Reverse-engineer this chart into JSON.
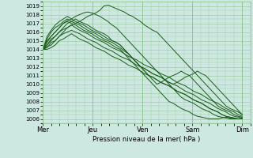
{
  "title": "",
  "xlabel": "Pression niveau de la mer( hPa )",
  "ylabel": "",
  "bg_color": "#cce8e0",
  "grid_color": "#88c088",
  "line_color": "#1a5c1a",
  "ylim": [
    1005.5,
    1019.5
  ],
  "xlim": [
    0,
    100
  ],
  "yticks": [
    1006,
    1007,
    1008,
    1009,
    1010,
    1011,
    1012,
    1013,
    1014,
    1015,
    1016,
    1017,
    1018,
    1019
  ],
  "xtick_positions": [
    0,
    24,
    48,
    72,
    96
  ],
  "xtick_labels": [
    "Mer",
    "Jeu",
    "Ven",
    "Sam",
    "Dim"
  ],
  "lines": [
    [
      1014.0,
      1014.5,
      1015.2,
      1015.5,
      1016.0,
      1016.3,
      1016.5,
      1016.8,
      1017.0,
      1017.2,
      1017.5,
      1017.8,
      1018.0,
      1018.2,
      1018.5,
      1019.0,
      1019.1,
      1018.9,
      1018.7,
      1018.5,
      1018.3,
      1018.0,
      1017.8,
      1017.5,
      1017.2,
      1016.8,
      1016.5,
      1016.2,
      1016.0,
      1015.5,
      1015.0,
      1014.5,
      1014.0,
      1013.5,
      1013.0,
      1012.5,
      1012.0,
      1011.5,
      1011.0,
      1010.5,
      1010.0,
      1009.5,
      1009.0,
      1008.5,
      1008.0,
      1007.5,
      1007.2,
      1007.0,
      1006.8,
      1006.5
    ],
    [
      1014.0,
      1014.8,
      1015.5,
      1016.0,
      1016.5,
      1017.0,
      1017.3,
      1017.5,
      1017.8,
      1018.0,
      1018.2,
      1018.3,
      1018.2,
      1018.0,
      1017.8,
      1017.5,
      1017.2,
      1016.8,
      1016.5,
      1016.0,
      1015.5,
      1015.0,
      1014.5,
      1014.0,
      1013.5,
      1013.0,
      1012.5,
      1012.0,
      1011.5,
      1011.0,
      1010.5,
      1010.0,
      1009.5,
      1009.0,
      1008.5,
      1008.2,
      1008.0,
      1007.8,
      1007.5,
      1007.2,
      1007.0,
      1006.8,
      1006.5,
      1006.3,
      1006.2,
      1006.1,
      1006.0,
      1006.0,
      1006.0,
      1006.1
    ],
    [
      1014.0,
      1014.5,
      1015.0,
      1015.5,
      1016.0,
      1016.5,
      1017.0,
      1017.2,
      1017.5,
      1017.2,
      1017.0,
      1016.8,
      1016.5,
      1016.2,
      1016.0,
      1015.8,
      1015.5,
      1015.0,
      1014.8,
      1014.5,
      1014.0,
      1013.5,
      1013.0,
      1012.5,
      1012.0,
      1011.5,
      1011.0,
      1010.8,
      1010.5,
      1010.2,
      1010.0,
      1009.8,
      1009.5,
      1009.2,
      1009.0,
      1008.8,
      1008.5,
      1008.2,
      1008.0,
      1007.8,
      1007.5,
      1007.2,
      1007.0,
      1006.8,
      1006.5,
      1006.3,
      1006.2,
      1006.1,
      1006.0,
      1006.0
    ],
    [
      1014.0,
      1014.3,
      1014.5,
      1015.0,
      1015.5,
      1016.0,
      1016.5,
      1016.8,
      1016.5,
      1016.2,
      1016.0,
      1015.8,
      1015.5,
      1015.2,
      1015.0,
      1014.8,
      1014.5,
      1014.2,
      1014.0,
      1013.8,
      1013.5,
      1013.2,
      1013.0,
      1012.8,
      1012.5,
      1012.2,
      1012.0,
      1011.8,
      1011.5,
      1011.2,
      1011.0,
      1010.8,
      1010.5,
      1010.2,
      1010.0,
      1009.8,
      1009.5,
      1009.2,
      1009.0,
      1008.8,
      1008.5,
      1008.2,
      1008.0,
      1007.8,
      1007.5,
      1007.2,
      1007.0,
      1006.8,
      1006.5,
      1006.3
    ],
    [
      1014.0,
      1014.0,
      1014.2,
      1014.5,
      1015.0,
      1015.2,
      1015.5,
      1015.8,
      1015.5,
      1015.2,
      1015.0,
      1014.8,
      1014.5,
      1014.2,
      1014.0,
      1013.8,
      1013.5,
      1013.2,
      1013.0,
      1012.8,
      1012.5,
      1012.2,
      1012.0,
      1011.8,
      1011.5,
      1011.2,
      1011.0,
      1010.8,
      1010.5,
      1010.2,
      1010.0,
      1009.8,
      1009.5,
      1009.2,
      1009.0,
      1008.8,
      1008.5,
      1008.2,
      1008.0,
      1007.8,
      1007.5,
      1007.2,
      1007.0,
      1006.8,
      1006.5,
      1006.3,
      1006.2,
      1006.1,
      1006.0,
      1006.0
    ],
    [
      1014.0,
      1014.2,
      1014.8,
      1015.0,
      1015.5,
      1015.8,
      1016.0,
      1016.2,
      1016.0,
      1015.8,
      1015.5,
      1015.2,
      1015.0,
      1014.8,
      1014.5,
      1014.2,
      1014.0,
      1013.8,
      1013.5,
      1013.2,
      1013.0,
      1012.8,
      1012.5,
      1012.2,
      1012.0,
      1011.8,
      1011.5,
      1011.2,
      1011.0,
      1010.8,
      1010.5,
      1010.2,
      1010.0,
      1009.8,
      1009.5,
      1009.2,
      1009.0,
      1008.8,
      1008.5,
      1008.2,
      1008.0,
      1007.8,
      1007.5,
      1007.2,
      1007.0,
      1006.8,
      1006.5,
      1006.3,
      1006.2,
      1006.1
    ],
    [
      1014.0,
      1015.0,
      1015.5,
      1016.0,
      1016.5,
      1017.0,
      1017.2,
      1017.0,
      1016.8,
      1016.5,
      1016.2,
      1016.0,
      1015.8,
      1015.5,
      1015.2,
      1015.0,
      1014.8,
      1014.5,
      1014.2,
      1014.0,
      1013.5,
      1013.0,
      1012.5,
      1012.0,
      1011.5,
      1011.0,
      1010.5,
      1010.0,
      1009.5,
      1009.0,
      1008.5,
      1008.0,
      1007.8,
      1007.5,
      1007.2,
      1007.0,
      1006.8,
      1006.5,
      1006.3,
      1006.2,
      1006.1,
      1006.0,
      1006.0,
      1006.0,
      1006.1,
      1006.2,
      1006.1,
      1006.0,
      1006.0,
      1006.0
    ],
    [
      1014.0,
      1015.2,
      1016.0,
      1016.5,
      1016.8,
      1017.2,
      1017.5,
      1017.2,
      1017.0,
      1016.8,
      1016.5,
      1016.2,
      1016.0,
      1015.8,
      1015.5,
      1015.2,
      1015.0,
      1014.8,
      1014.5,
      1014.2,
      1013.8,
      1013.5,
      1013.0,
      1012.5,
      1012.0,
      1011.8,
      1011.5,
      1011.2,
      1011.0,
      1010.8,
      1010.5,
      1010.2,
      1010.0,
      1010.2,
      1010.5,
      1010.8,
      1011.0,
      1011.2,
      1011.5,
      1011.2,
      1011.0,
      1010.5,
      1010.0,
      1009.5,
      1009.0,
      1008.5,
      1008.0,
      1007.5,
      1007.0,
      1006.5
    ],
    [
      1014.0,
      1015.5,
      1016.2,
      1016.8,
      1017.2,
      1017.5,
      1017.8,
      1017.5,
      1017.2,
      1017.0,
      1016.8,
      1016.5,
      1016.2,
      1016.0,
      1015.8,
      1015.5,
      1015.2,
      1015.0,
      1014.8,
      1014.5,
      1014.0,
      1013.5,
      1013.0,
      1012.5,
      1012.0,
      1011.5,
      1011.0,
      1010.5,
      1010.0,
      1010.2,
      1010.5,
      1010.8,
      1011.0,
      1011.2,
      1011.5,
      1011.2,
      1011.0,
      1010.5,
      1010.0,
      1009.5,
      1009.0,
      1008.5,
      1008.0,
      1007.5,
      1007.2,
      1007.0,
      1006.8,
      1006.5,
      1006.3,
      1006.2
    ]
  ]
}
